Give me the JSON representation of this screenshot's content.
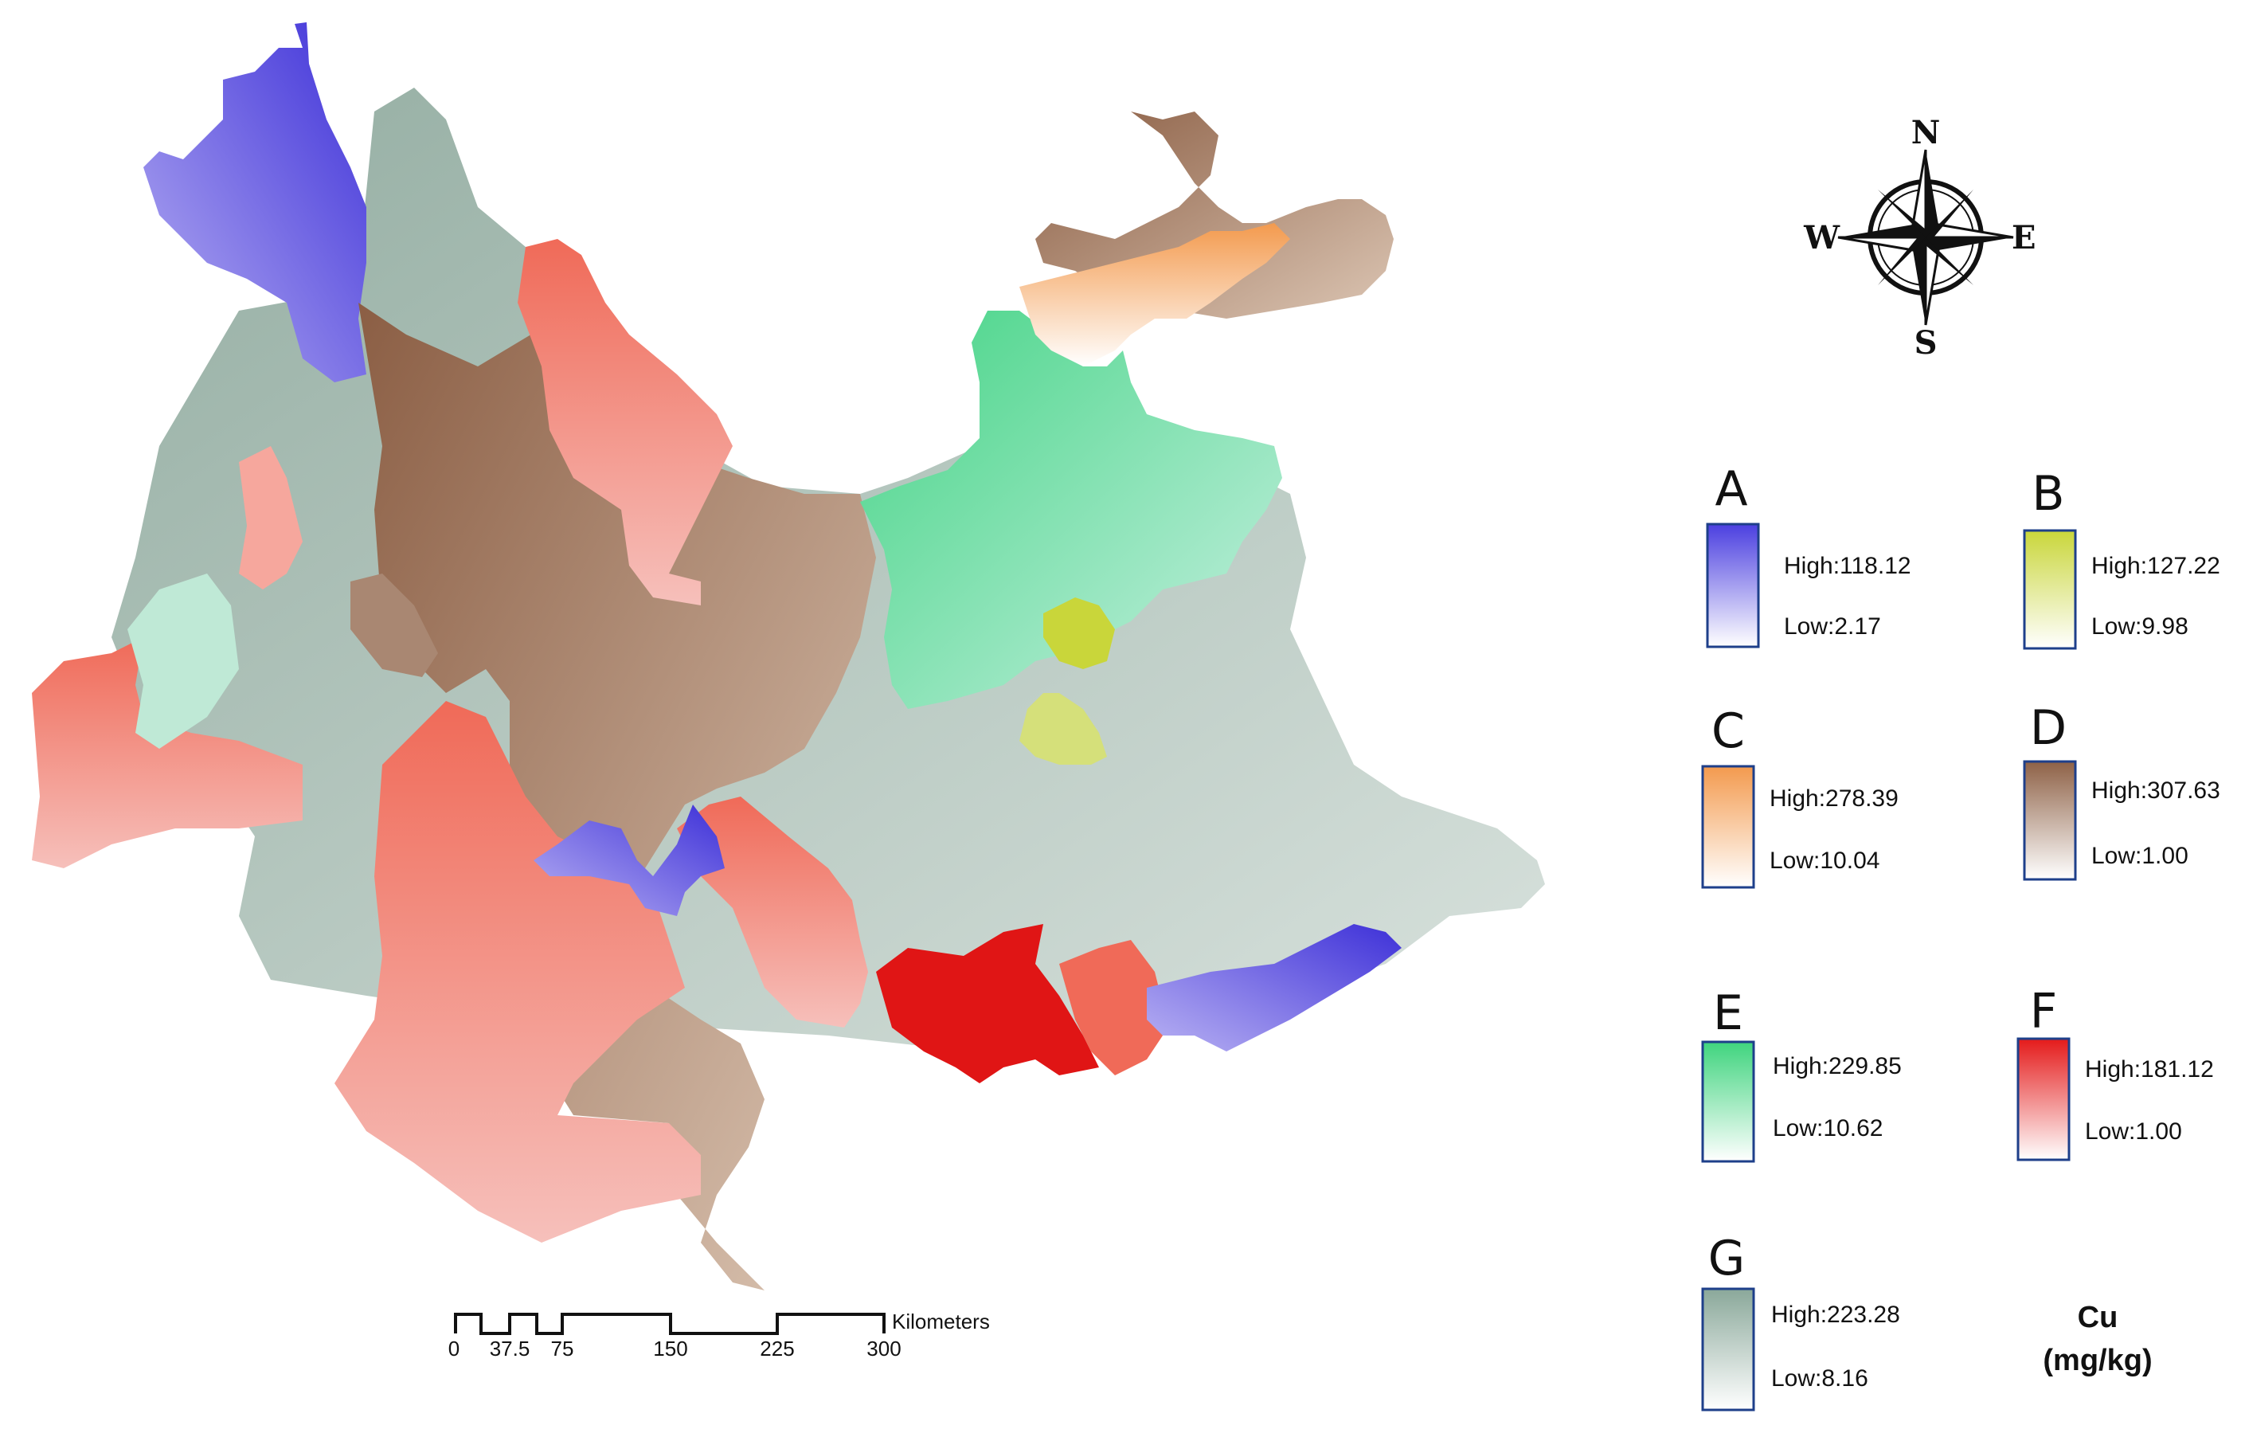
{
  "map": {
    "compass": {
      "n": "N",
      "s": "S",
      "e": "E",
      "w": "W"
    },
    "scale": {
      "ticks": [
        "0",
        "37.5",
        "75",
        "150",
        "225",
        "300"
      ],
      "unit": "Kilometers"
    },
    "unit_title": {
      "line1": "Cu",
      "line2": "(mg/kg)"
    },
    "legend": [
      {
        "letter": "A",
        "high": "High:118.12",
        "low": "Low:2.17",
        "color": "#4b3fe0"
      },
      {
        "letter": "B",
        "high": "High:127.22",
        "low": "Low:9.98",
        "color": "#c9d63a"
      },
      {
        "letter": "C",
        "high": "High:278.39",
        "low": "Low:10.04",
        "color": "#f39a4e"
      },
      {
        "letter": "D",
        "high": "High:307.63",
        "low": "Low:1.00",
        "color": "#8e6146"
      },
      {
        "letter": "E",
        "high": "High:229.85",
        "low": "Low:10.62",
        "color": "#3fd47e"
      },
      {
        "letter": "F",
        "high": "High:181.12",
        "low": "Low:1.00",
        "color": "#e41a1a"
      },
      {
        "letter": "G",
        "high": "High:223.28",
        "low": "Low:8.16",
        "color": "#8aa89a"
      }
    ]
  }
}
